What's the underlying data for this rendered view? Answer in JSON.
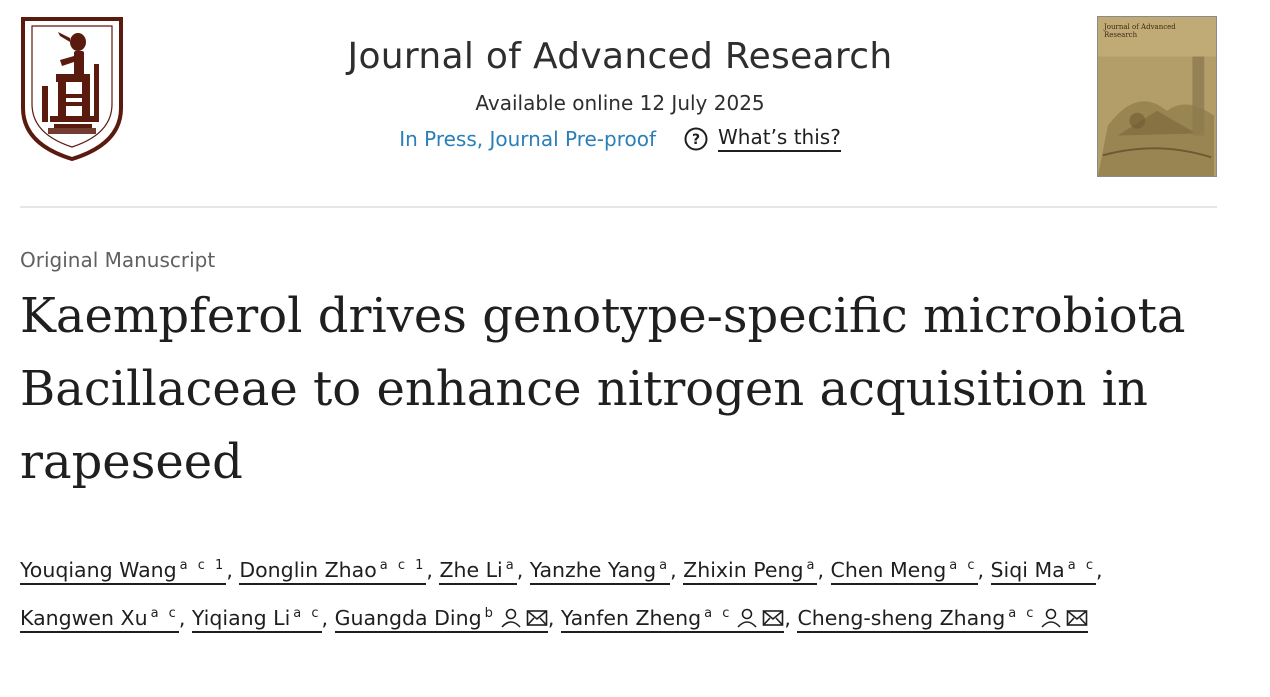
{
  "journal": {
    "title": "Journal of Advanced Research",
    "available": "Available online 12 July 2025",
    "status": "In Press, Journal Pre-proof",
    "whats_this": "What’s this?",
    "cover_title": "Journal of Advanced Research"
  },
  "article": {
    "type": "Original Manuscript",
    "title": "Kaempferol drives genotype-specific microbiota Bacillaceae to enhance nitrogen acquisition in rapeseed"
  },
  "authors": [
    {
      "name": "Youqiang Wang",
      "sup": "a c 1"
    },
    {
      "name": "Donglin Zhao",
      "sup": "a c 1"
    },
    {
      "name": "Zhe Li",
      "sup": "a"
    },
    {
      "name": "Yanzhe Yang",
      "sup": "a"
    },
    {
      "name": "Zhixin Peng",
      "sup": "a"
    },
    {
      "name": "Chen Meng",
      "sup": "a c"
    },
    {
      "name": "Siqi Ma",
      "sup": "a c"
    },
    {
      "name": "Kangwen Xu",
      "sup": "a c"
    },
    {
      "name": "Yiqiang Li",
      "sup": "a c"
    },
    {
      "name": "Guangda Ding",
      "sup": "b"
    },
    {
      "name": "Yanfen Zheng",
      "sup": "a c"
    },
    {
      "name": "Cheng-sheng Zhang",
      "sup": "a c"
    }
  ],
  "separator": ",",
  "icons": {
    "logo": "university-seal-logo",
    "cover": "journal-cover-thumbnail",
    "help": "question-circle-icon",
    "person": "person-icon",
    "email": "envelope-icon"
  },
  "colors": {
    "link": "#2a7fb8",
    "text": "#1f1f1f",
    "muted": "#606060",
    "logo_brown": "#5a1a0e"
  }
}
